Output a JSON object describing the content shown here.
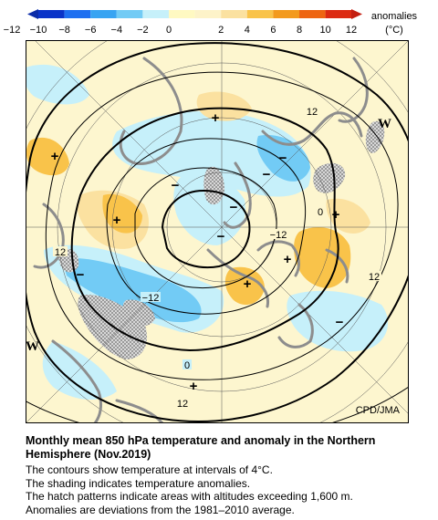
{
  "colorbar": {
    "label_line1": "anomalies",
    "label_line2": "(°C)",
    "ticks": [
      "−12",
      "−10",
      "−8",
      "−6",
      "−4",
      "−2",
      "0",
      "2",
      "4",
      "6",
      "8",
      "10",
      "12"
    ],
    "colors": [
      "#0a33c8",
      "#1e6ff0",
      "#38a4f2",
      "#72cbf5",
      "#c6f0fa",
      "#fff9c2",
      "#fbe1a0",
      "#f9c34a",
      "#f39a1e",
      "#ee6512",
      "#dc2a12"
    ]
  },
  "map": {
    "credit": "CPD/JMA",
    "contour_labels": [
      "12",
      "0",
      "−12",
      "12",
      "−12",
      "12",
      "0",
      "12"
    ],
    "anomaly_markers": [
      "+",
      "+",
      "+",
      "+",
      "+",
      "+",
      "+",
      "−",
      "−",
      "−",
      "−",
      "−",
      "−",
      "−"
    ],
    "side_marks": [
      "W",
      "W"
    ],
    "colors": {
      "background": "#fdf6cf",
      "warm_light": "#fbe1a0",
      "warm": "#f9c34a",
      "cool_light": "#c6f0fa",
      "cool": "#72cbf5",
      "coast": "#8d8d8d",
      "hatch": "#6e6e6e"
    }
  },
  "caption": {
    "title": "Monthly mean 850 hPa temperature and anomaly in the Northern Hemisphere (Nov.2019)",
    "line1": "The contours show temperature at intervals of 4°C.",
    "line2": "The shading indicates temperature anomalies.",
    "line3": "The hatch patterns indicate areas with altitudes exceeding 1,600 m.",
    "line4": "Anomalies are deviations from the 1981–2010 average."
  }
}
